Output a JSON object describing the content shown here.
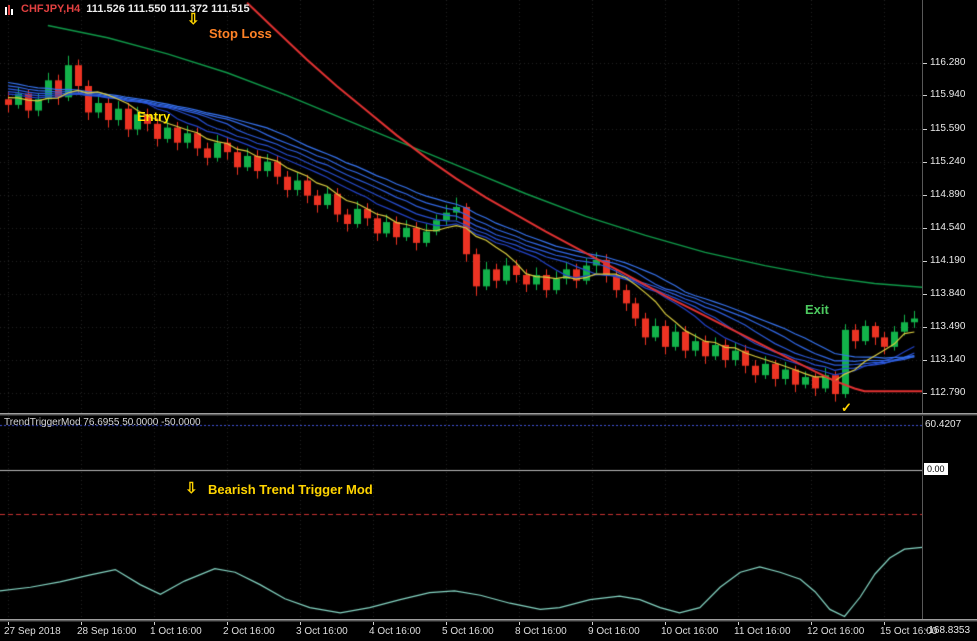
{
  "title": {
    "symbol": "CHFJPY,H4",
    "ohlc": "111.526 111.550 111.372 111.515"
  },
  "indicator_title": "TrendTriggerMod 76.6955 50.0000 -50.0000",
  "annotations": {
    "stop_arrow": {
      "glyph": "⇩",
      "color": "#ffd400",
      "i": 18,
      "p": 116.72
    },
    "stop_loss": {
      "text": "Stop Loss",
      "color": "#ff8226",
      "i": 20.2,
      "p": 116.58
    },
    "entry": {
      "text": "Entry",
      "color": "#ffe400",
      "i": 13,
      "p": 115.7
    },
    "exit": {
      "text": "Exit",
      "color": "#4cc95f",
      "i": 80,
      "p": 113.66
    },
    "check": {
      "glyph": "✓",
      "color": "#ffd400",
      "i": 83.6,
      "p": 112.62
    },
    "bear_arrow": {
      "glyph": "⇩",
      "color": "#ffd400",
      "frac": 0.201,
      "value": -24
    },
    "bearish": {
      "text": "Bearish Trend Trigger Mod",
      "color": "#ffd400",
      "frac": 0.226,
      "value": -24
    }
  },
  "price_axis": {
    "labels": [
      "116.280",
      "115.940",
      "115.590",
      "115.240",
      "114.890",
      "114.540",
      "114.190",
      "113.840",
      "113.490",
      "113.140",
      "112.790"
    ]
  },
  "time_axis": {
    "labels": [
      "27 Sep 2018",
      "28 Sep 16:00",
      "1 Oct 16:00",
      "2 Oct 16:00",
      "3 Oct 16:00",
      "4 Oct 16:00",
      "5 Oct 16:00",
      "8 Oct 16:00",
      "9 Oct 16:00",
      "10 Oct 16:00",
      "11 Oct 16:00",
      "12 Oct 16:00",
      "15 Oct 16:00"
    ]
  },
  "chart_data": {
    "type": "candlestick",
    "symbol": "CHFJPY",
    "timeframe": "H4",
    "title": "CHFJPY,H4 111.526 111.550 111.372 111.515",
    "view": {
      "price_max": 116.95,
      "price_min": 112.58
    },
    "candles": [
      [
        115.9,
        115.98,
        115.76,
        115.84
      ],
      [
        115.84,
        116.02,
        115.8,
        115.96
      ],
      [
        115.96,
        116.0,
        115.7,
        115.78
      ],
      [
        115.78,
        115.96,
        115.72,
        115.9
      ],
      [
        115.9,
        116.18,
        115.86,
        116.1
      ],
      [
        116.1,
        116.16,
        115.84,
        115.92
      ],
      [
        115.92,
        116.36,
        115.88,
        116.26
      ],
      [
        116.26,
        116.32,
        115.96,
        116.04
      ],
      [
        116.04,
        116.1,
        115.68,
        115.76
      ],
      [
        115.76,
        115.94,
        115.7,
        115.86
      ],
      [
        115.86,
        115.92,
        115.6,
        115.68
      ],
      [
        115.68,
        115.88,
        115.62,
        115.8
      ],
      [
        115.8,
        115.86,
        115.5,
        115.58
      ],
      [
        115.58,
        115.82,
        115.52,
        115.74
      ],
      [
        115.74,
        115.8,
        115.56,
        115.64
      ],
      [
        115.64,
        115.7,
        115.4,
        115.48
      ],
      [
        115.48,
        115.68,
        115.44,
        115.6
      ],
      [
        115.6,
        115.66,
        115.36,
        115.44
      ],
      [
        115.44,
        115.62,
        115.38,
        115.54
      ],
      [
        115.54,
        115.6,
        115.3,
        115.38
      ],
      [
        115.38,
        115.44,
        115.2,
        115.28
      ],
      [
        115.28,
        115.52,
        115.24,
        115.44
      ],
      [
        115.44,
        115.5,
        115.26,
        115.34
      ],
      [
        115.34,
        115.4,
        115.1,
        115.18
      ],
      [
        115.18,
        115.38,
        115.14,
        115.3
      ],
      [
        115.3,
        115.36,
        115.06,
        115.14
      ],
      [
        115.14,
        115.32,
        115.08,
        115.24
      ],
      [
        115.24,
        115.3,
        115.0,
        115.08
      ],
      [
        115.08,
        115.14,
        114.86,
        114.94
      ],
      [
        114.94,
        115.12,
        114.88,
        115.04
      ],
      [
        115.04,
        115.1,
        114.8,
        114.88
      ],
      [
        114.88,
        114.94,
        114.7,
        114.78
      ],
      [
        114.78,
        114.98,
        114.74,
        114.9
      ],
      [
        114.9,
        114.96,
        114.6,
        114.68
      ],
      [
        114.68,
        114.74,
        114.5,
        114.58
      ],
      [
        114.58,
        114.82,
        114.54,
        114.74
      ],
      [
        114.74,
        114.8,
        114.56,
        114.64
      ],
      [
        114.64,
        114.7,
        114.4,
        114.48
      ],
      [
        114.48,
        114.68,
        114.44,
        114.6
      ],
      [
        114.6,
        114.66,
        114.36,
        114.44
      ],
      [
        114.44,
        114.62,
        114.4,
        114.54
      ],
      [
        114.54,
        114.6,
        114.3,
        114.38
      ],
      [
        114.38,
        114.58,
        114.34,
        114.5
      ],
      [
        114.5,
        114.68,
        114.46,
        114.62
      ],
      [
        114.62,
        114.78,
        114.56,
        114.7
      ],
      [
        114.7,
        114.86,
        114.62,
        114.76
      ],
      [
        114.76,
        114.8,
        114.18,
        114.26
      ],
      [
        114.26,
        114.32,
        113.82,
        113.92
      ],
      [
        113.92,
        114.18,
        113.88,
        114.1
      ],
      [
        114.1,
        114.16,
        113.9,
        113.98
      ],
      [
        113.98,
        114.22,
        113.94,
        114.14
      ],
      [
        114.14,
        114.2,
        113.96,
        114.04
      ],
      [
        114.04,
        114.1,
        113.86,
        113.94
      ],
      [
        113.94,
        114.12,
        113.88,
        114.04
      ],
      [
        114.04,
        114.1,
        113.8,
        113.88
      ],
      [
        113.88,
        114.08,
        113.84,
        114.0
      ],
      [
        114.0,
        114.18,
        113.94,
        114.1
      ],
      [
        114.1,
        114.16,
        113.9,
        113.98
      ],
      [
        113.98,
        114.22,
        113.94,
        114.14
      ],
      [
        114.14,
        114.28,
        114.06,
        114.2
      ],
      [
        114.2,
        114.26,
        113.96,
        114.04
      ],
      [
        114.04,
        114.1,
        113.8,
        113.88
      ],
      [
        113.88,
        113.94,
        113.66,
        113.74
      ],
      [
        113.74,
        113.8,
        113.5,
        113.58
      ],
      [
        113.58,
        113.64,
        113.3,
        113.38
      ],
      [
        113.38,
        113.58,
        113.34,
        113.5
      ],
      [
        113.5,
        113.56,
        113.2,
        113.28
      ],
      [
        113.28,
        113.52,
        113.24,
        113.44
      ],
      [
        113.44,
        113.5,
        113.16,
        113.24
      ],
      [
        113.24,
        113.42,
        113.18,
        113.34
      ],
      [
        113.34,
        113.4,
        113.1,
        113.18
      ],
      [
        113.18,
        113.38,
        113.14,
        113.3
      ],
      [
        113.3,
        113.36,
        113.06,
        113.14
      ],
      [
        113.14,
        113.32,
        113.08,
        113.24
      ],
      [
        113.24,
        113.3,
        113.0,
        113.08
      ],
      [
        113.08,
        113.14,
        112.9,
        112.98
      ],
      [
        112.98,
        113.18,
        112.94,
        113.1
      ],
      [
        113.1,
        113.14,
        112.86,
        112.94
      ],
      [
        112.94,
        113.12,
        112.88,
        113.04
      ],
      [
        113.04,
        113.08,
        112.8,
        112.88
      ],
      [
        112.88,
        113.02,
        112.84,
        112.96
      ],
      [
        112.96,
        113.0,
        112.76,
        112.84
      ],
      [
        112.84,
        113.06,
        112.8,
        112.98
      ],
      [
        112.98,
        113.02,
        112.7,
        112.78
      ],
      [
        112.78,
        113.52,
        112.74,
        113.46
      ],
      [
        113.46,
        113.52,
        113.26,
        113.34
      ],
      [
        113.34,
        113.56,
        113.3,
        113.5
      ],
      [
        113.5,
        113.54,
        113.3,
        113.38
      ],
      [
        113.38,
        113.44,
        113.2,
        113.28
      ],
      [
        113.28,
        113.5,
        113.24,
        113.44
      ],
      [
        113.44,
        113.62,
        113.4,
        113.54
      ],
      [
        113.54,
        113.66,
        113.48,
        113.58
      ]
    ],
    "colors": {
      "up": "#12b24a",
      "down": "#ec3323",
      "ribbon": [
        "#2343c8",
        "#2850d2",
        "#2d5cdc",
        "#3268e6",
        "#3774f0"
      ],
      "yellow": "#d9cc3f",
      "green": "#109b4a",
      "red": "#e23232",
      "grid": "#232323"
    },
    "overlays": {
      "ribbon_sma_periods": [
        11,
        14,
        17,
        20,
        23
      ],
      "yellow_sma_period": 7,
      "ma_seed_closes": [
        116.45,
        116.4,
        116.35,
        116.3,
        116.28,
        116.25,
        116.22,
        116.2,
        116.18,
        116.15,
        116.12,
        116.1,
        116.08,
        116.05,
        116.05,
        116.02,
        116.0,
        116.0,
        115.98,
        115.95,
        115.95,
        115.92,
        115.9,
        115.88
      ],
      "green_line": [
        [
          4,
          116.68
        ],
        [
          10,
          116.55
        ],
        [
          16,
          116.38
        ],
        [
          22,
          116.18
        ],
        [
          28,
          115.94
        ],
        [
          34,
          115.68
        ],
        [
          40,
          115.42
        ],
        [
          46,
          115.16
        ],
        [
          52,
          114.9
        ],
        [
          58,
          114.66
        ],
        [
          64,
          114.46
        ],
        [
          70,
          114.28
        ],
        [
          76,
          114.14
        ],
        [
          82,
          114.02
        ],
        [
          87,
          113.95
        ],
        [
          93,
          113.9
        ]
      ],
      "red_line": [
        [
          24,
          116.92
        ],
        [
          27,
          116.62
        ],
        [
          30,
          116.32
        ],
        [
          33,
          116.04
        ],
        [
          36,
          115.78
        ],
        [
          39,
          115.52
        ],
        [
          42,
          115.28
        ],
        [
          45,
          115.06
        ],
        [
          48,
          114.86
        ],
        [
          51,
          114.68
        ],
        [
          54,
          114.5
        ],
        [
          57,
          114.33
        ],
        [
          60,
          114.16
        ],
        [
          63,
          113.99
        ],
        [
          66,
          113.82
        ],
        [
          69,
          113.66
        ],
        [
          72,
          113.5
        ],
        [
          75,
          113.34
        ],
        [
          78,
          113.18
        ],
        [
          81,
          113.02
        ],
        [
          83,
          112.92
        ],
        [
          85,
          112.84
        ],
        [
          86,
          112.81
        ],
        [
          93,
          112.81
        ]
      ]
    },
    "indicator": {
      "name": "TrendTriggerMod",
      "values_label": "76.6955 50.0000 -50.0000",
      "scale_max": 60.4207,
      "scale_min": -168.8353,
      "levels": [
        {
          "value": 50,
          "style": "dot",
          "color": "#4053d8"
        },
        {
          "value": 0,
          "style": "solid",
          "color": "#b8b8b8"
        },
        {
          "value": -50,
          "style": "dash",
          "color": "#c83232"
        }
      ],
      "line_color": "#86d7c5",
      "line": [
        [
          0.0,
          -137
        ],
        [
          0.033,
          -133
        ],
        [
          0.065,
          -127
        ],
        [
          0.098,
          -119
        ],
        [
          0.125,
          -113
        ],
        [
          0.152,
          -130
        ],
        [
          0.174,
          -141
        ],
        [
          0.2,
          -126
        ],
        [
          0.233,
          -112
        ],
        [
          0.255,
          -116
        ],
        [
          0.282,
          -130
        ],
        [
          0.309,
          -146
        ],
        [
          0.336,
          -156
        ],
        [
          0.369,
          -162
        ],
        [
          0.401,
          -156
        ],
        [
          0.434,
          -147
        ],
        [
          0.466,
          -139
        ],
        [
          0.493,
          -137
        ],
        [
          0.521,
          -142
        ],
        [
          0.553,
          -151
        ],
        [
          0.586,
          -158
        ],
        [
          0.607,
          -156
        ],
        [
          0.64,
          -147
        ],
        [
          0.672,
          -143
        ],
        [
          0.694,
          -147
        ],
        [
          0.716,
          -156
        ],
        [
          0.737,
          -162
        ],
        [
          0.759,
          -156
        ],
        [
          0.781,
          -133
        ],
        [
          0.803,
          -116
        ],
        [
          0.824,
          -110
        ],
        [
          0.846,
          -116
        ],
        [
          0.868,
          -124
        ],
        [
          0.884,
          -138
        ],
        [
          0.9,
          -158
        ],
        [
          0.916,
          -166
        ],
        [
          0.933,
          -144
        ],
        [
          0.949,
          -118
        ],
        [
          0.965,
          -100
        ],
        [
          0.981,
          -90
        ],
        [
          1.0,
          -88
        ]
      ],
      "axis": {
        "max_label": "60.4207",
        "min_label": "-168.8353",
        "zero_box": "0.00"
      }
    }
  }
}
